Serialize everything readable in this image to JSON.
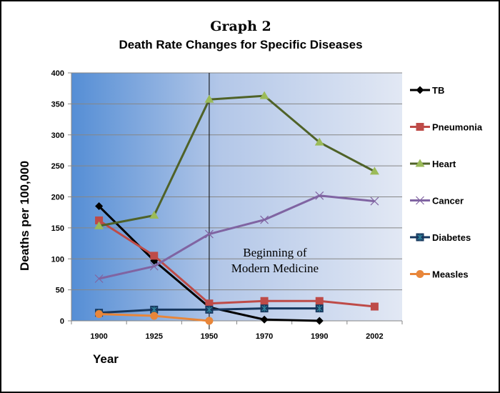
{
  "chart_data": {
    "type": "line",
    "title": "Graph 2",
    "subtitle": "Death Rate Changes for Specific Diseases",
    "xlabel": "Year",
    "ylabel": "Deaths per 100,000",
    "categories": [
      "1900",
      "1925",
      "1950",
      "1970",
      "1990",
      "2002"
    ],
    "ylim": [
      0,
      400
    ],
    "yticks": [
      "0",
      "50",
      "100",
      "150",
      "200",
      "250",
      "300",
      "350",
      "400"
    ],
    "grid": true,
    "legend": "right",
    "annotation": {
      "line1": "Beginning of",
      "line2": "Modern Medicine",
      "at_category": "1950"
    },
    "series": [
      {
        "name": "TB",
        "color": "#000000",
        "marker": "diamond",
        "values": [
          185,
          97,
          22,
          2,
          0,
          null
        ]
      },
      {
        "name": "Pneumonia",
        "color": "#be4b48",
        "marker": "square",
        "values": [
          162,
          105,
          28,
          32,
          32,
          23
        ]
      },
      {
        "name": "Heart",
        "color": "#4f6228",
        "markerColor": "#9bbb59",
        "marker": "triangle",
        "values": [
          153,
          170,
          357,
          363,
          288,
          241
        ]
      },
      {
        "name": "Cancer",
        "color": "#8064a2",
        "marker": "x",
        "values": [
          68,
          88,
          140,
          163,
          202,
          193
        ]
      },
      {
        "name": "Diabetes",
        "color": "#17375e",
        "markerColor": "#31859c",
        "marker": "star-square",
        "values": [
          13,
          18,
          18,
          20,
          20,
          null
        ]
      },
      {
        "name": "Measles",
        "color": "#e8863a",
        "marker": "circle",
        "values": [
          11,
          8,
          0,
          null,
          null,
          null
        ]
      }
    ]
  }
}
